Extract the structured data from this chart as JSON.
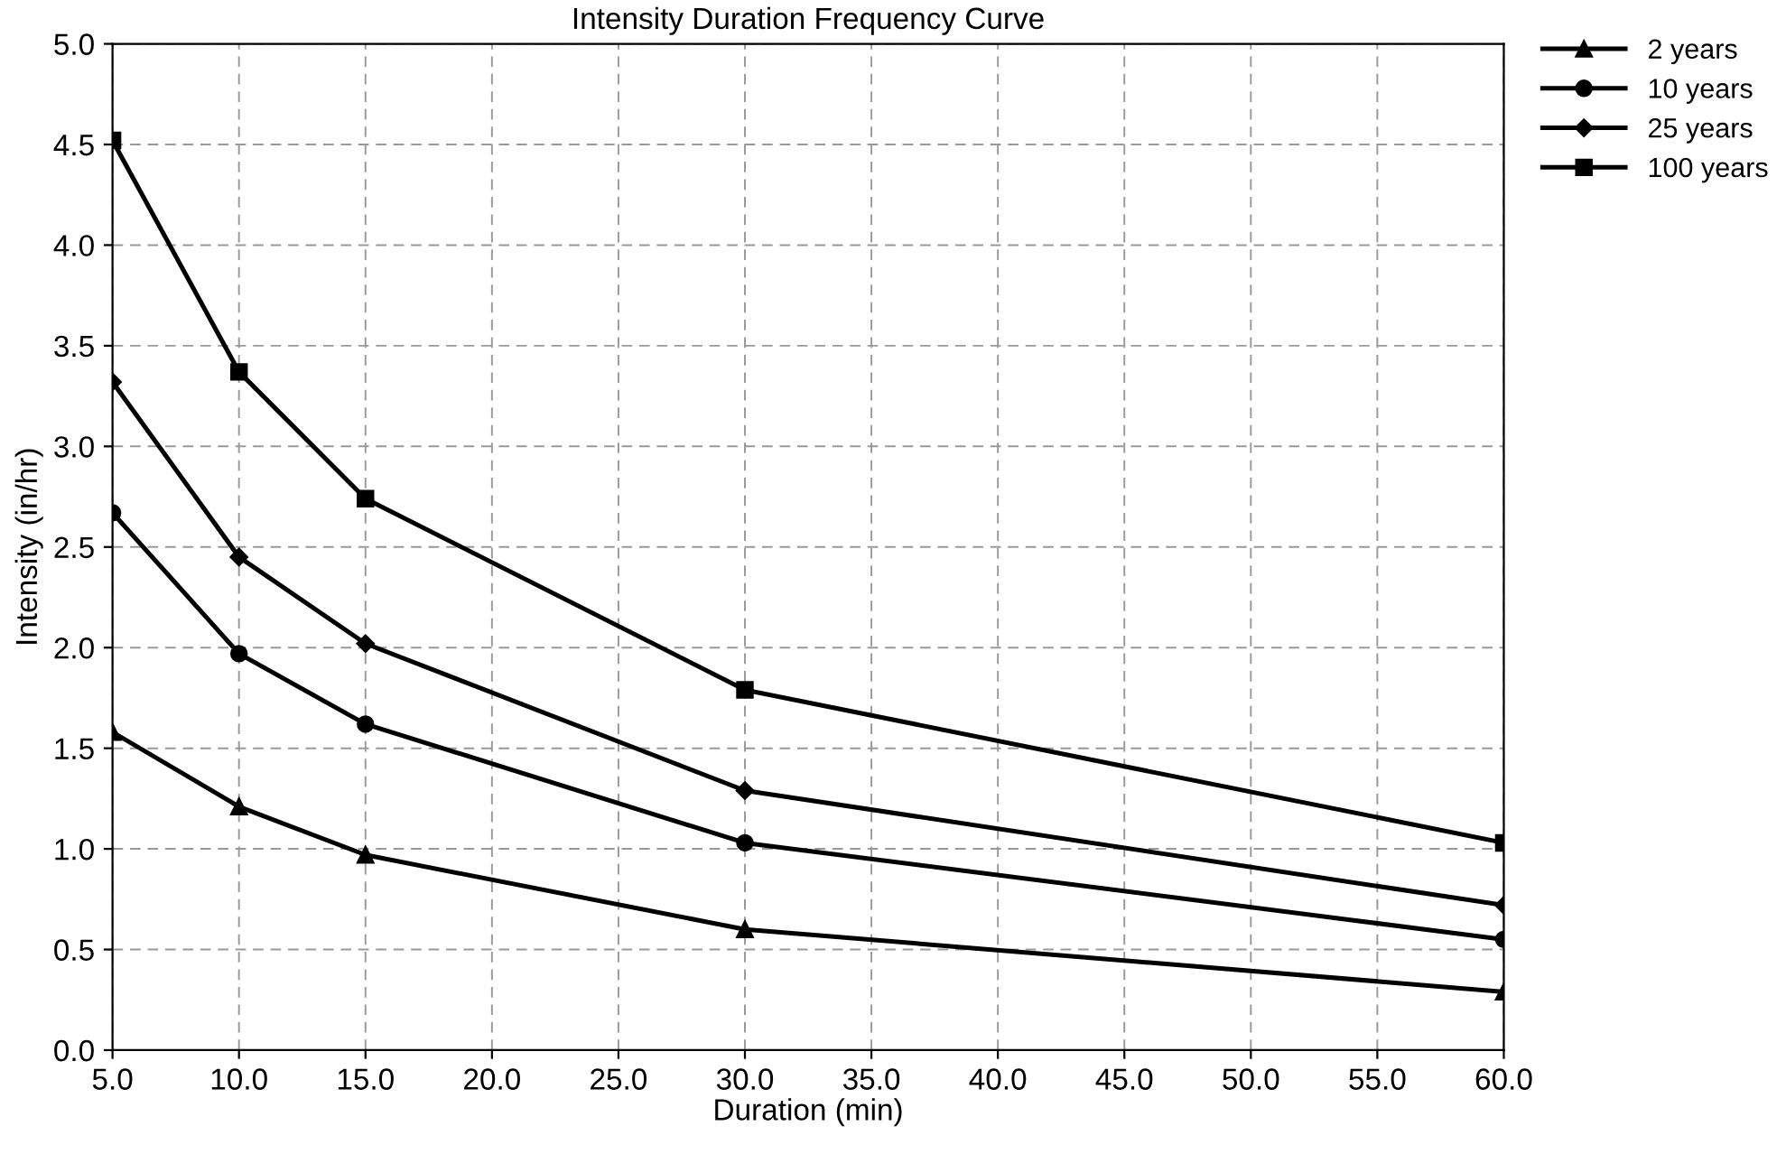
{
  "chart_data": {
    "type": "line",
    "title": "Intensity Duration Frequency Curve",
    "xlabel": "Duration (min)",
    "ylabel": "Intensity (in/hr)",
    "x": [
      5,
      10,
      15,
      30,
      60
    ],
    "series": [
      {
        "name": "2 years",
        "color": "#000000",
        "marker": "triangle",
        "values": [
          1.58,
          1.21,
          0.97,
          0.6,
          0.29
        ]
      },
      {
        "name": "10 years",
        "color": "#000000",
        "marker": "circle",
        "values": [
          2.67,
          1.97,
          1.62,
          1.03,
          0.55
        ]
      },
      {
        "name": "25 years",
        "color": "#000000",
        "marker": "diamond",
        "values": [
          3.32,
          2.45,
          2.02,
          1.29,
          0.72
        ]
      },
      {
        "name": "100 years",
        "color": "#000000",
        "marker": "square",
        "values": [
          4.52,
          3.37,
          2.74,
          1.79,
          1.03
        ]
      }
    ],
    "xlim": [
      5,
      60
    ],
    "ylim": [
      0,
      5
    ],
    "xticks": [
      {
        "value": 5,
        "label": "5.0"
      },
      {
        "value": 10,
        "label": "10.0"
      },
      {
        "value": 15,
        "label": "15.0"
      },
      {
        "value": 20,
        "label": "20.0"
      },
      {
        "value": 25,
        "label": "25.0"
      },
      {
        "value": 30,
        "label": "30.0"
      },
      {
        "value": 35,
        "label": "35.0"
      },
      {
        "value": 40,
        "label": "40.0"
      },
      {
        "value": 45,
        "label": "45.0"
      },
      {
        "value": 50,
        "label": "50.0"
      },
      {
        "value": 55,
        "label": "55.0"
      },
      {
        "value": 60,
        "label": "60.0"
      }
    ],
    "yticks": [
      {
        "value": 0,
        "label": "0.0"
      },
      {
        "value": 0.5,
        "label": "0.5"
      },
      {
        "value": 1,
        "label": "1.0"
      },
      {
        "value": 1.5,
        "label": "1.5"
      },
      {
        "value": 2,
        "label": "2.0"
      },
      {
        "value": 2.5,
        "label": "2.5"
      },
      {
        "value": 3,
        "label": "3.0"
      },
      {
        "value": 3.5,
        "label": "3.5"
      },
      {
        "value": 4,
        "label": "4.0"
      },
      {
        "value": 4.5,
        "label": "4.5"
      },
      {
        "value": 5,
        "label": "5.0"
      }
    ],
    "grid": true,
    "legend": "top right",
    "line_style": "solid"
  }
}
